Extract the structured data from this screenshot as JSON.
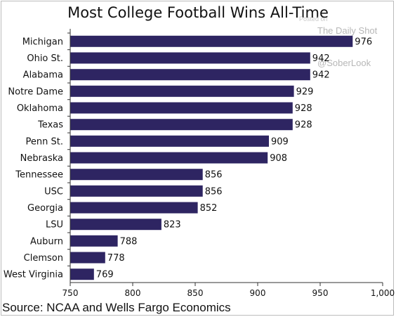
{
  "chart_data": {
    "type": "bar",
    "orientation": "horizontal",
    "title": "Most College Football Wins All-Time",
    "source": "Source: NCAA and Wells Fargo Economics",
    "categories": [
      "Michigan",
      "Ohio St.",
      "Alabama",
      "Notre Dame",
      "Oklahoma",
      "Texas",
      "Penn St.",
      "Nebraska",
      "Tennessee",
      "USC",
      "Georgia",
      "LSU",
      "Auburn",
      "Clemson",
      "West Virginia"
    ],
    "values": [
      976,
      942,
      942,
      929,
      928,
      928,
      909,
      908,
      856,
      856,
      852,
      823,
      788,
      778,
      769
    ],
    "value_labels": [
      "976",
      "942",
      "942",
      "929",
      "928",
      "928",
      "909",
      "908",
      "856",
      "856",
      "852",
      "823",
      "788",
      "778",
      "769"
    ],
    "xlim": [
      750,
      1000
    ],
    "x_ticks": [
      750,
      800,
      850,
      900,
      950,
      1000
    ],
    "x_tick_labels": [
      "750",
      "800",
      "850",
      "900",
      "950",
      "1,000"
    ],
    "bar_color": "#2e2562",
    "grid": false,
    "legend": "none"
  },
  "watermark": {
    "line1": "Posted on",
    "line2": "The Daily Shot",
    "line3": "@SoberLook"
  }
}
